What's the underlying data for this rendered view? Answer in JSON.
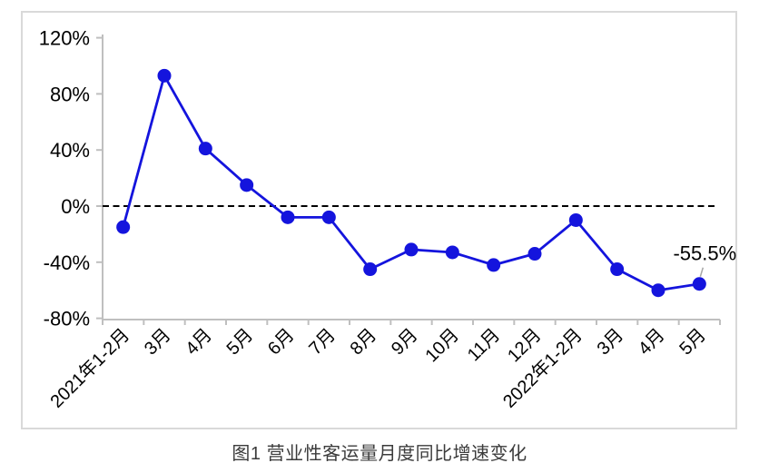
{
  "figure": {
    "caption": "图1  营业性客运量月度同比增速变化"
  },
  "chart_data": {
    "type": "line",
    "title": "图1  营业性客运量月度同比增速变化",
    "xlabel": "",
    "ylabel": "",
    "categories": [
      "2021年1-2月",
      "3月",
      "4月",
      "5月",
      "6月",
      "7月",
      "8月",
      "9月",
      "10月",
      "11月",
      "12月",
      "2022年1-2月",
      "3月",
      "4月",
      "5月"
    ],
    "values": [
      -15,
      93,
      41,
      15,
      -8,
      -8,
      -45,
      -31,
      -33,
      -42,
      -34,
      -10,
      -45,
      -60,
      -55.5
    ],
    "ylim": [
      -80,
      120
    ],
    "yticks": [
      120,
      80,
      40,
      0,
      -40,
      -80
    ],
    "ytick_suffix": "%",
    "grid": false,
    "legend": "none",
    "zero_line": {
      "style": "dashed",
      "color": "#000000"
    },
    "annotation": {
      "index": 14,
      "label": "-55.5%"
    },
    "colors": {
      "line": "#1414dd",
      "marker": "#1414dd",
      "axis": "#bfbfbf",
      "frame_border": "#d9d9d9",
      "annotation_leader": "#a6a6a6",
      "text": "#000000"
    }
  }
}
